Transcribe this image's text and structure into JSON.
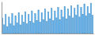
{
  "chart_data": {
    "type": "bar",
    "values": [
      18,
      10,
      22,
      8,
      19,
      11,
      23,
      9,
      20,
      12,
      24,
      10,
      21,
      13,
      25,
      11,
      22,
      14,
      26,
      12,
      23,
      15,
      27,
      13,
      24,
      16,
      28,
      14,
      25,
      17,
      29,
      15,
      26,
      18,
      30,
      16,
      27,
      19,
      31,
      17,
      28,
      20,
      32,
      18,
      29,
      21,
      33,
      19,
      30,
      22,
      34,
      20,
      31,
      23,
      35,
      21
    ],
    "color": "#5aafee",
    "ylim": [
      0,
      36.75
    ],
    "tick_labels": false,
    "grid": false
  }
}
